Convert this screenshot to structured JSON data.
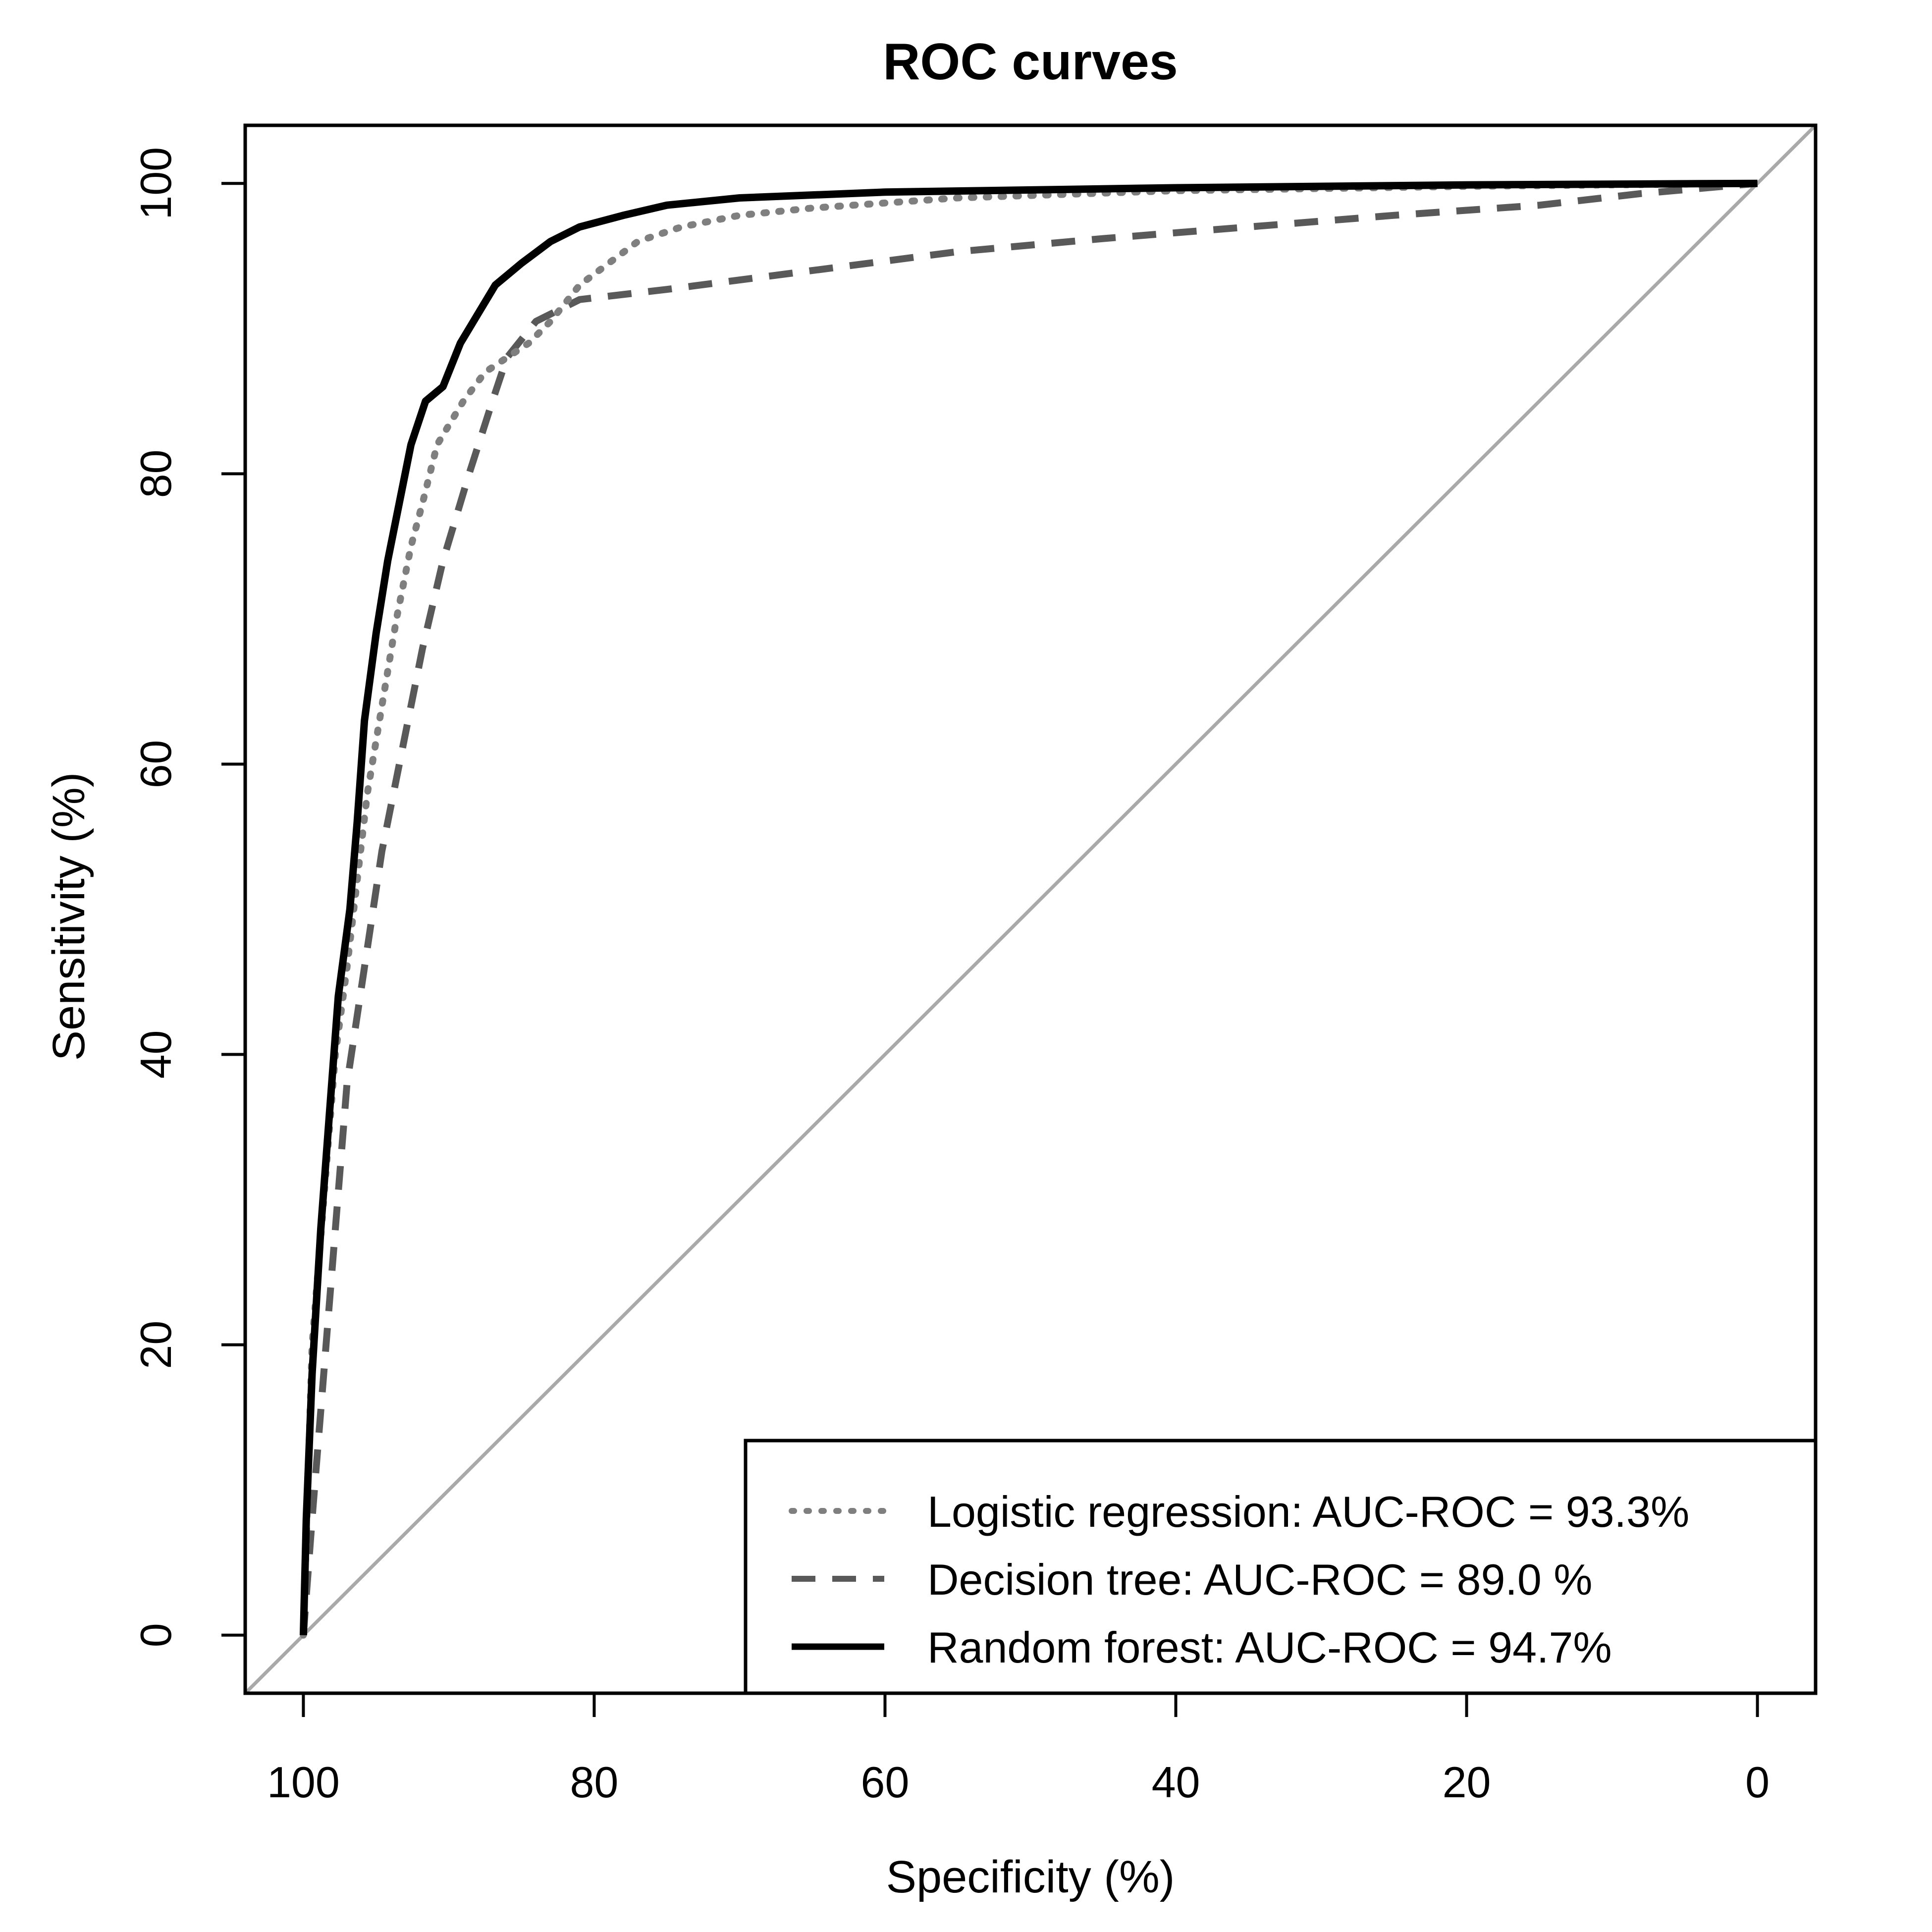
{
  "chart_data": {
    "type": "line",
    "title": "ROC curves",
    "xlabel": "Specificity (%)",
    "ylabel": "Sensitivity (%)",
    "x_reversed": true,
    "xlim": [
      104,
      -4
    ],
    "ylim": [
      -4,
      104
    ],
    "xticks": [
      100,
      80,
      60,
      40,
      20,
      0
    ],
    "yticks": [
      0,
      20,
      40,
      60,
      80,
      100
    ],
    "grid": false,
    "legend_position": "bottom-right",
    "reference_line": {
      "from": [
        104,
        -4
      ],
      "to": [
        -4,
        104
      ],
      "color": "#a9a9a9"
    },
    "series": [
      {
        "name": "Logistic regression: AUC-ROC = 93.3%",
        "style": "dotted",
        "color": "#7f7f7f",
        "points": [
          [
            100,
            0
          ],
          [
            99.7,
            10
          ],
          [
            99.4,
            20
          ],
          [
            98.6,
            30
          ],
          [
            97.8,
            40
          ],
          [
            97,
            46
          ],
          [
            96.3,
            52
          ],
          [
            95.6,
            58
          ],
          [
            94.6,
            64
          ],
          [
            93.6,
            70
          ],
          [
            92.6,
            75
          ],
          [
            91.8,
            78
          ],
          [
            90.8,
            82
          ],
          [
            89,
            85
          ],
          [
            87.5,
            87
          ],
          [
            86,
            88
          ],
          [
            84.5,
            89
          ],
          [
            83,
            90.5
          ],
          [
            81,
            93
          ],
          [
            79,
            94.5
          ],
          [
            77,
            96
          ],
          [
            74,
            97
          ],
          [
            70,
            97.8
          ],
          [
            65,
            98.3
          ],
          [
            55,
            99
          ],
          [
            40,
            99.5
          ],
          [
            20,
            99.8
          ],
          [
            0,
            100
          ]
        ]
      },
      {
        "name": "Decision tree: AUC-ROC = 89.0 %",
        "style": "dashed",
        "color": "#595959",
        "points": [
          [
            100,
            0
          ],
          [
            99.4,
            8
          ],
          [
            98.6,
            18
          ],
          [
            97.8,
            28
          ],
          [
            97,
            38
          ],
          [
            95.8,
            46
          ],
          [
            94.6,
            54
          ],
          [
            93.2,
            61
          ],
          [
            91.8,
            68
          ],
          [
            90.4,
            74
          ],
          [
            88.6,
            80
          ],
          [
            87,
            85
          ],
          [
            86,
            88
          ],
          [
            84,
            90.5
          ],
          [
            81,
            92
          ],
          [
            75,
            92.7
          ],
          [
            65,
            94
          ],
          [
            55,
            95.3
          ],
          [
            45,
            96.2
          ],
          [
            35,
            97
          ],
          [
            25,
            97.8
          ],
          [
            15,
            98.5
          ],
          [
            8,
            99.3
          ],
          [
            0,
            100
          ]
        ]
      },
      {
        "name": "Random forest: AUC-ROC = 94.7%",
        "style": "solid",
        "color": "#000000",
        "points": [
          [
            100,
            0
          ],
          [
            99.8,
            8
          ],
          [
            99.4,
            18
          ],
          [
            98.8,
            28
          ],
          [
            98.2,
            36
          ],
          [
            97.6,
            44
          ],
          [
            96.8,
            50
          ],
          [
            96.3,
            56
          ],
          [
            95.8,
            63
          ],
          [
            95,
            69
          ],
          [
            94.2,
            74
          ],
          [
            93.4,
            78
          ],
          [
            92.6,
            82
          ],
          [
            91.6,
            85
          ],
          [
            90.4,
            86
          ],
          [
            89.2,
            89
          ],
          [
            88,
            91
          ],
          [
            86.8,
            93
          ],
          [
            85,
            94.5
          ],
          [
            83,
            96
          ],
          [
            81,
            97
          ],
          [
            78,
            97.8
          ],
          [
            75,
            98.5
          ],
          [
            70,
            99
          ],
          [
            60,
            99.4
          ],
          [
            40,
            99.7
          ],
          [
            20,
            99.9
          ],
          [
            0,
            100
          ]
        ]
      }
    ]
  }
}
